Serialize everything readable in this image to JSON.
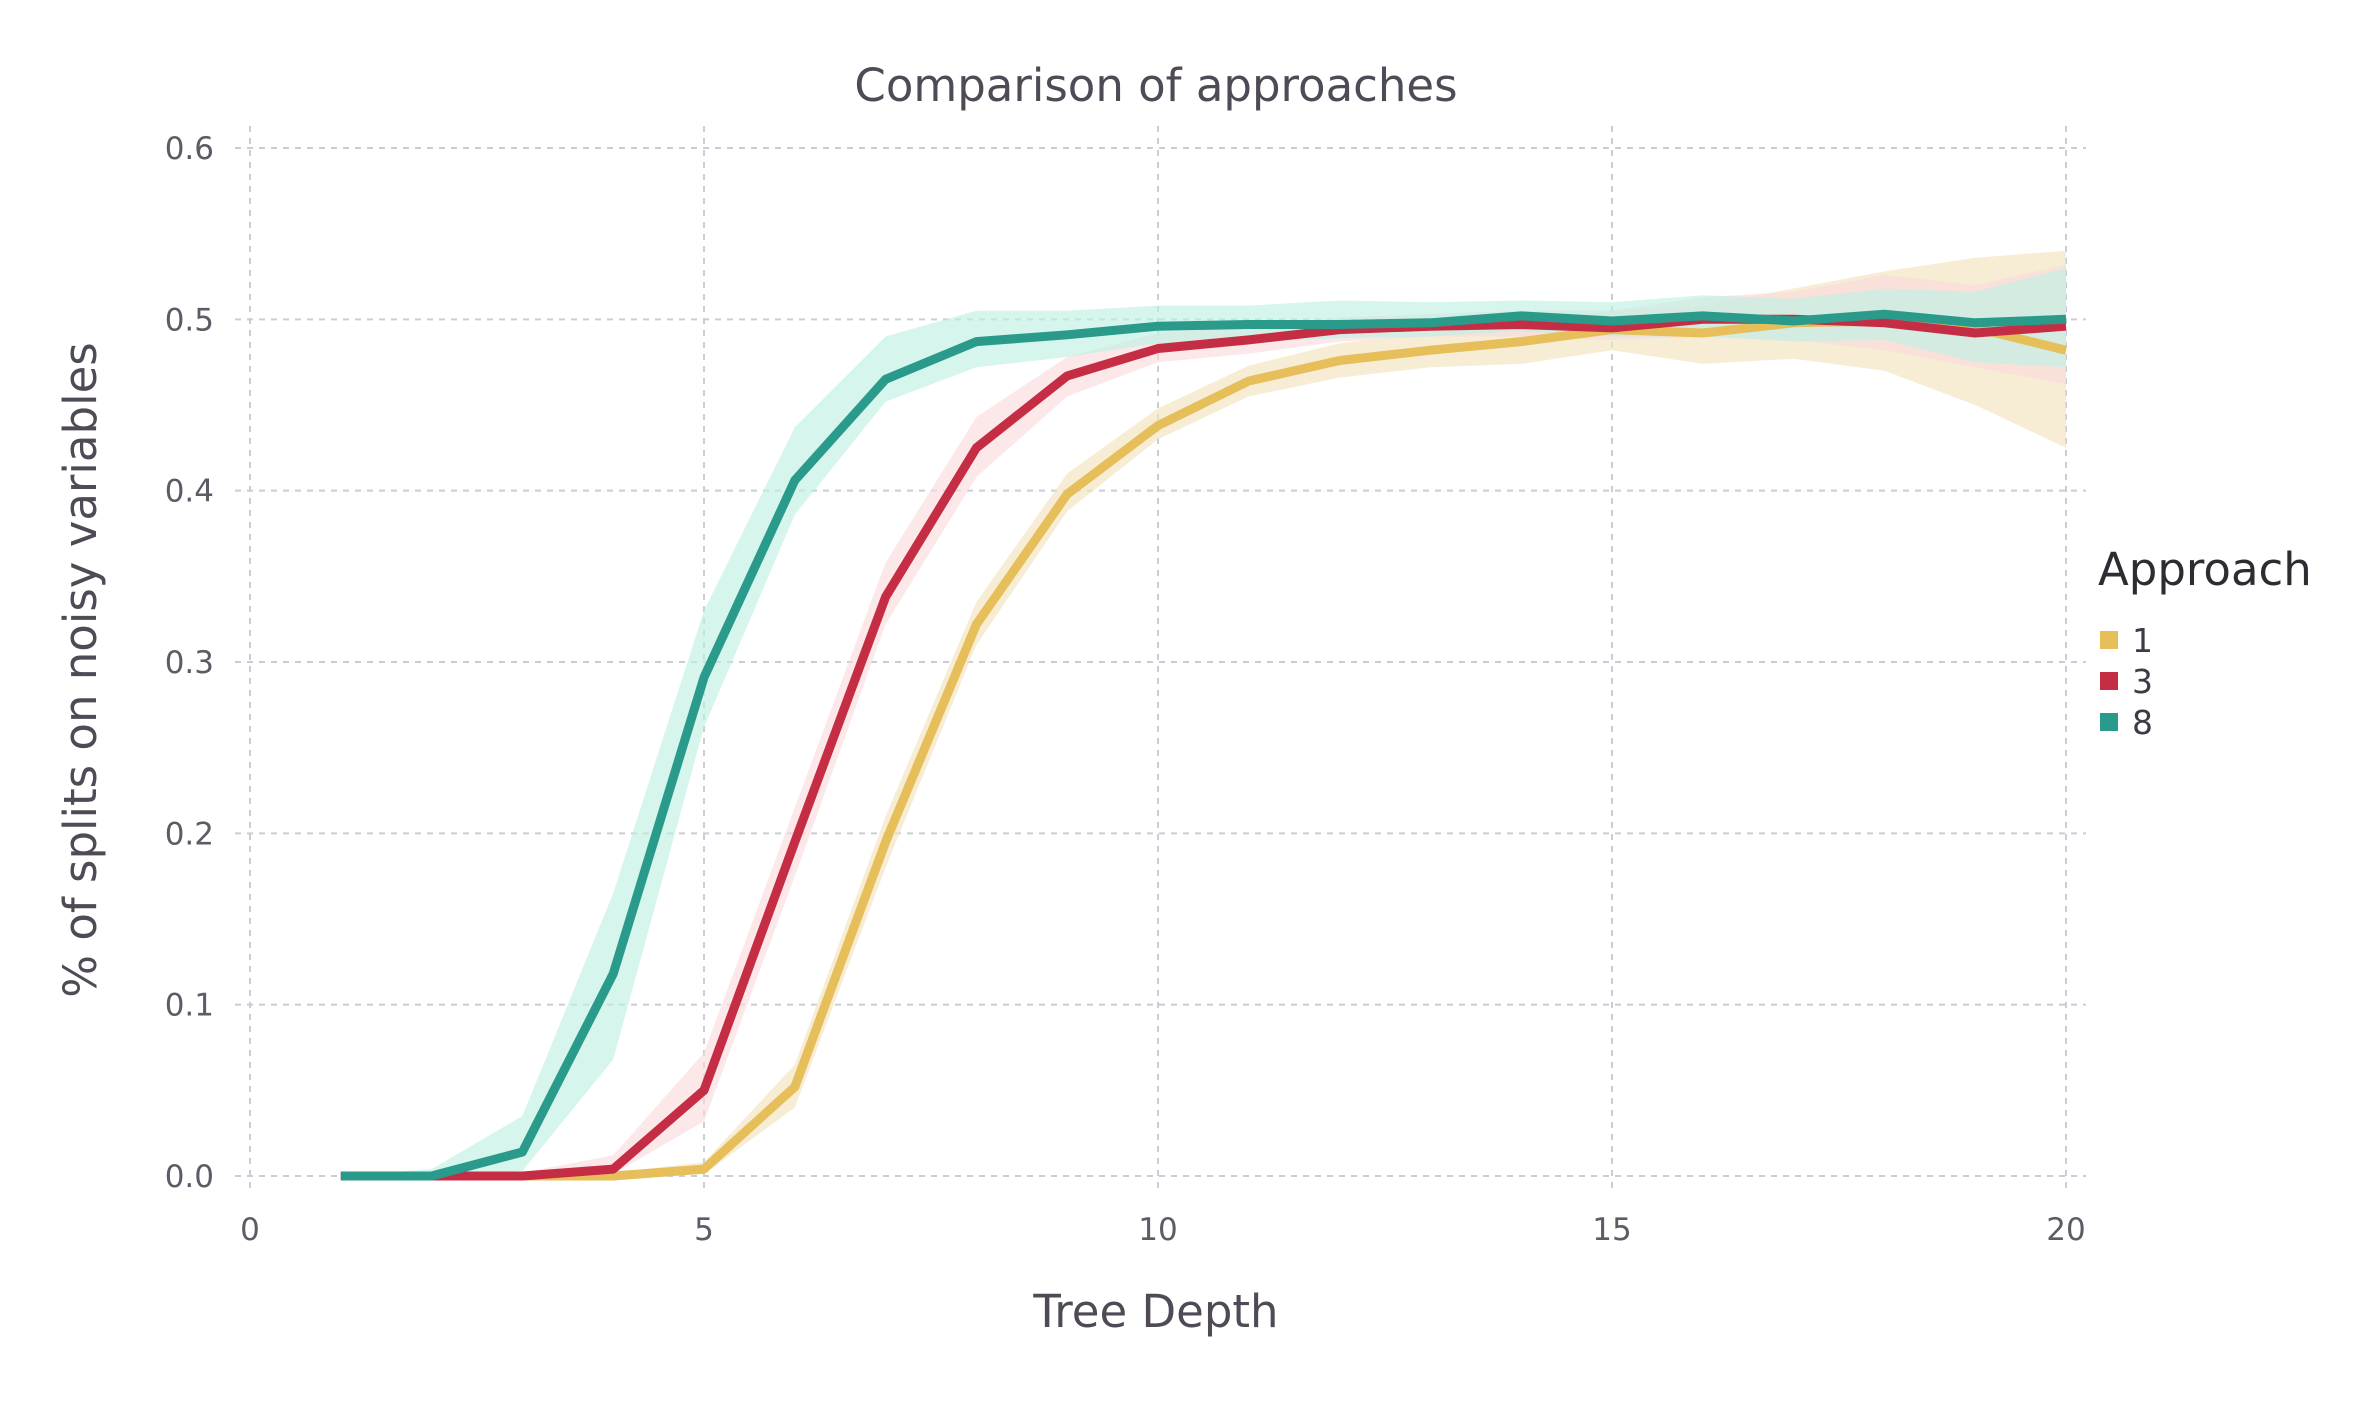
{
  "chart_data": {
    "type": "line",
    "title": "Comparison of approaches",
    "xlabel": "Tree Depth",
    "ylabel": "% of splits on noisy variables",
    "xlim": [
      0,
      20
    ],
    "ylim": [
      0,
      0.6
    ],
    "xticks": [
      0,
      5,
      10,
      15,
      20
    ],
    "xtick_labels": [
      "0",
      "5",
      "10",
      "15",
      "20"
    ],
    "yticks": [
      0,
      0.1,
      0.2,
      0.3,
      0.4,
      0.5,
      0.6
    ],
    "ytick_labels": [
      "0.0",
      "0.1",
      "0.2",
      "0.3",
      "0.4",
      "0.5",
      "0.6"
    ],
    "grid": true,
    "legend": {
      "title": "Approach",
      "placement": "right"
    },
    "x": [
      1,
      2,
      3,
      4,
      5,
      6,
      7,
      8,
      9,
      10,
      11,
      12,
      13,
      14,
      15,
      16,
      17,
      18,
      19,
      20
    ],
    "series": [
      {
        "name": "1",
        "color": "#e6be5a",
        "band_color": "#f3e3bd",
        "values": [
          0,
          0,
          0,
          0,
          0.004,
          0.052,
          0.195,
          0.322,
          0.398,
          0.438,
          0.464,
          0.476,
          0.482,
          0.487,
          0.494,
          0.492,
          0.498,
          0.499,
          0.495,
          0.482
        ],
        "lower": [
          0,
          0,
          0,
          0,
          0.001,
          0.04,
          0.18,
          0.31,
          0.388,
          0.43,
          0.455,
          0.466,
          0.472,
          0.474,
          0.482,
          0.474,
          0.477,
          0.47,
          0.45,
          0.425
        ],
        "upper": [
          0,
          0,
          0,
          0.002,
          0.008,
          0.065,
          0.21,
          0.335,
          0.41,
          0.448,
          0.473,
          0.486,
          0.492,
          0.498,
          0.505,
          0.508,
          0.518,
          0.528,
          0.536,
          0.54
        ]
      },
      {
        "name": "3",
        "color": "#c52d44",
        "band_color": "#fbdadd",
        "values": [
          0,
          0,
          0,
          0.004,
          0.05,
          0.195,
          0.338,
          0.425,
          0.467,
          0.483,
          0.488,
          0.494,
          0.496,
          0.497,
          0.495,
          0.5,
          0.5,
          0.498,
          0.492,
          0.496
        ],
        "lower": [
          0,
          0,
          0,
          0.001,
          0.032,
          0.175,
          0.322,
          0.408,
          0.455,
          0.475,
          0.48,
          0.487,
          0.49,
          0.49,
          0.488,
          0.49,
          0.488,
          0.482,
          0.472,
          0.462
        ],
        "upper": [
          0,
          0,
          0.002,
          0.012,
          0.072,
          0.215,
          0.358,
          0.443,
          0.478,
          0.492,
          0.496,
          0.501,
          0.503,
          0.505,
          0.505,
          0.513,
          0.516,
          0.526,
          0.52,
          0.532
        ]
      },
      {
        "name": "8",
        "color": "#2a9a8a",
        "band_color": "#bff0e4",
        "values": [
          0,
          0,
          0.014,
          0.118,
          0.291,
          0.406,
          0.465,
          0.487,
          0.491,
          0.496,
          0.497,
          0.497,
          0.498,
          0.502,
          0.499,
          0.502,
          0.499,
          0.503,
          0.498,
          0.5
        ],
        "lower": [
          0,
          0,
          0.003,
          0.068,
          0.262,
          0.386,
          0.452,
          0.472,
          0.478,
          0.486,
          0.487,
          0.489,
          0.49,
          0.493,
          0.49,
          0.49,
          0.487,
          0.488,
          0.475,
          0.472
        ],
        "upper": [
          0,
          0.004,
          0.035,
          0.165,
          0.33,
          0.437,
          0.49,
          0.505,
          0.505,
          0.508,
          0.508,
          0.511,
          0.51,
          0.511,
          0.51,
          0.514,
          0.512,
          0.518,
          0.516,
          0.53
        ]
      }
    ]
  }
}
